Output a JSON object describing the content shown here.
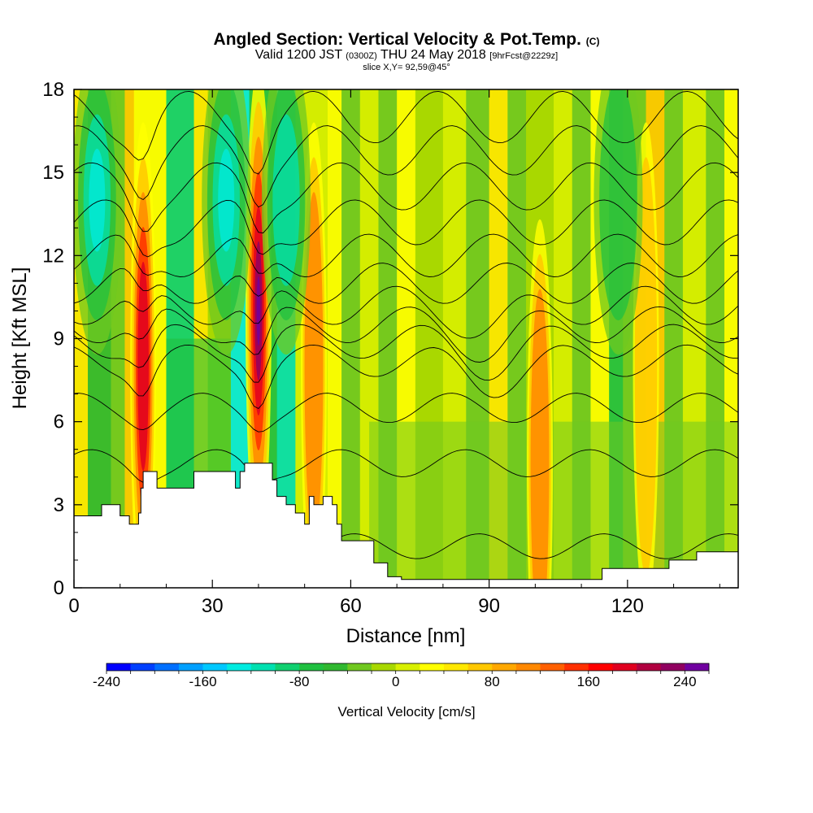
{
  "header": {
    "title_main": "Angled Section: Vertical Velocity & Pot.Temp.",
    "title_tag": "(C)",
    "valid_a": "Valid 1200 JST",
    "valid_small": "(0300Z)",
    "valid_b": "THU 24 May 2018",
    "fcst": "[9hrFcst@2229z]",
    "slice": "slice X,Y= 92,59@45°"
  },
  "chart_data": {
    "type": "heatmap",
    "xlabel": "Distance [nm]",
    "ylabel": "Height [Kft MSL]",
    "xlim": [
      0,
      144
    ],
    "ylim": [
      0,
      18
    ],
    "x_ticks": [
      "0",
      "30",
      "60",
      "90",
      "120"
    ],
    "y_ticks": [
      "0",
      "3",
      "6",
      "9",
      "12",
      "15",
      "18"
    ],
    "updraft_cores": [
      {
        "x": 15,
        "peak_cm_s": 200
      },
      {
        "x": 40,
        "peak_cm_s": 280
      },
      {
        "x": 52,
        "peak_cm_s": 120
      },
      {
        "x": 101,
        "peak_cm_s": 110
      },
      {
        "x": 124,
        "peak_cm_s": 80
      }
    ],
    "downdraft_regions": [
      {
        "x": 5,
        "min_cm_s": -150
      },
      {
        "x": 33,
        "min_cm_s": -150
      },
      {
        "x": 46,
        "min_cm_s": -120
      },
      {
        "x": 118,
        "min_cm_s": -100
      }
    ],
    "terrain_kft": [
      [
        0,
        2.6
      ],
      [
        5,
        2.6
      ],
      [
        6,
        3.0
      ],
      [
        8,
        3.0
      ],
      [
        10,
        2.6
      ],
      [
        12,
        2.3
      ],
      [
        14,
        2.7
      ],
      [
        14.5,
        3.6
      ],
      [
        15,
        4.2
      ],
      [
        17,
        4.2
      ],
      [
        18,
        3.6
      ],
      [
        25,
        3.6
      ],
      [
        26,
        4.2
      ],
      [
        34,
        4.2
      ],
      [
        35,
        3.6
      ],
      [
        36,
        4.2
      ],
      [
        37,
        4.5
      ],
      [
        42,
        4.5
      ],
      [
        43,
        3.9
      ],
      [
        44,
        3.3
      ],
      [
        46,
        3.0
      ],
      [
        48,
        2.7
      ],
      [
        50,
        2.3
      ],
      [
        51,
        3.3
      ],
      [
        52,
        3.0
      ],
      [
        54,
        3.3
      ],
      [
        56,
        3.0
      ],
      [
        57,
        2.3
      ],
      [
        58,
        1.7
      ],
      [
        62,
        1.7
      ],
      [
        65,
        0.9
      ],
      [
        68,
        0.4
      ],
      [
        71,
        0.3
      ],
      [
        114,
        0.3
      ],
      [
        114.5,
        0.7
      ],
      [
        128,
        0.7
      ],
      [
        129,
        1.0
      ],
      [
        134,
        1.0
      ],
      [
        135,
        1.3
      ],
      [
        144,
        1.3
      ]
    ],
    "colorbar": {
      "label": "Vertical Velocity [cm/s]",
      "ticks": [
        "-240",
        "-160",
        "-80",
        "0",
        "80",
        "160",
        "240"
      ],
      "colors": [
        "#0000ff",
        "#0040ff",
        "#0070ff",
        "#00a0ff",
        "#00c8ff",
        "#00ebe0",
        "#00e0b0",
        "#10d070",
        "#20c040",
        "#30b830",
        "#70c820",
        "#a8d800",
        "#d8f000",
        "#ffff00",
        "#ffe800",
        "#ffc800",
        "#ffa800",
        "#ff8800",
        "#ff6000",
        "#ff3000",
        "#ff0000",
        "#e00020",
        "#b00040",
        "#900060",
        "#7000a0"
      ]
    }
  }
}
